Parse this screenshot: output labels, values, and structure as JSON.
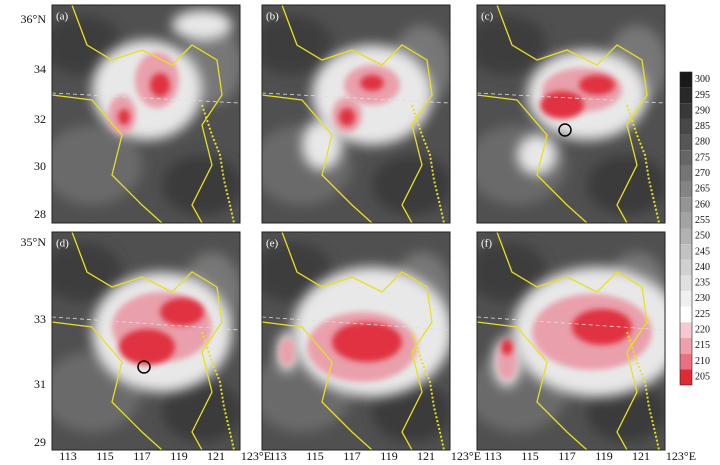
{
  "panels": [
    {
      "label": "(a)"
    },
    {
      "label": "(b)"
    },
    {
      "label": "(c)"
    },
    {
      "label": "(d)"
    },
    {
      "label": "(e)"
    },
    {
      "label": "(f)"
    }
  ],
  "y_axis_top": [
    "36°N",
    "34",
    "32",
    "30",
    "28"
  ],
  "y_axis_bottom": [
    "35°N",
    "33",
    "31",
    "29"
  ],
  "x_axis": [
    "113",
    "115",
    "117",
    "119",
    "121",
    "123°E"
  ],
  "colorbar": [
    300,
    295,
    290,
    285,
    280,
    275,
    270,
    265,
    260,
    255,
    250,
    245,
    240,
    235,
    230,
    225,
    220,
    215,
    210,
    205
  ]
}
